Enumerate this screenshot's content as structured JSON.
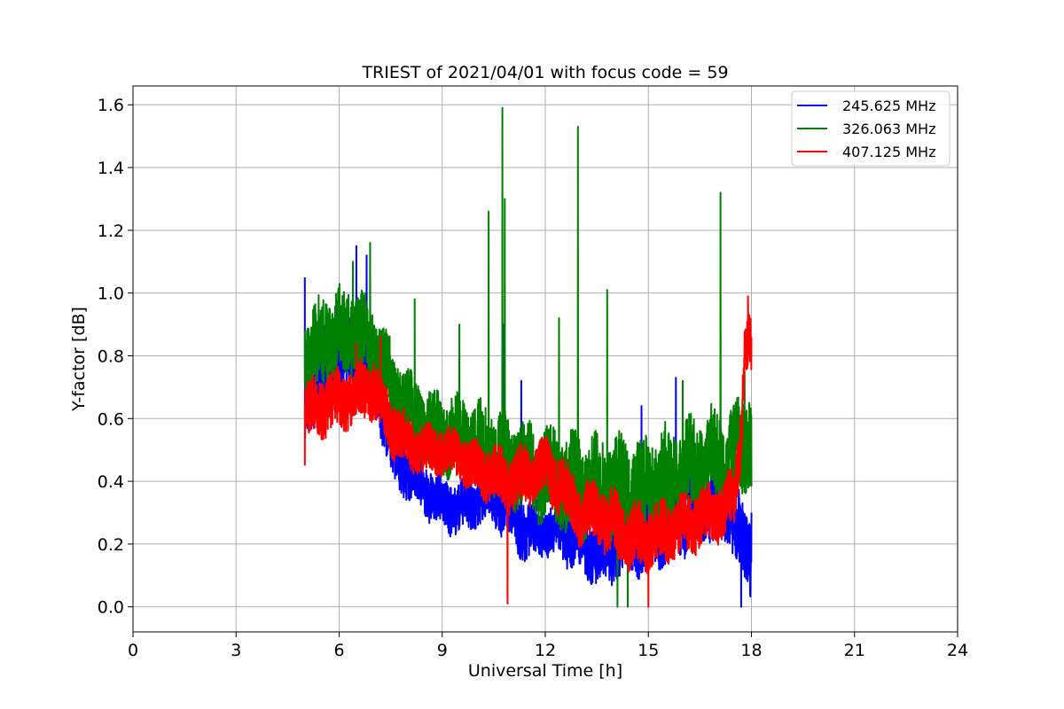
{
  "chart_data": {
    "type": "line",
    "title": "TRIEST of 2021/04/01 with focus code = 59",
    "xlabel": "Universal Time [h]",
    "ylabel": "Y-factor [dB]",
    "xlim": [
      0,
      24
    ],
    "ylim": [
      -0.08,
      1.66
    ],
    "xticks": [
      0,
      3,
      6,
      9,
      12,
      15,
      18,
      21,
      24
    ],
    "yticks": [
      0.0,
      0.2,
      0.4,
      0.6,
      0.8,
      1.0,
      1.2,
      1.4,
      1.6
    ],
    "grid": true,
    "legend_position": "top-right",
    "series": [
      {
        "name": "245.625 MHz",
        "color": "#0000ff",
        "trend": {
          "x": [
            5.0,
            5.5,
            6.0,
            6.5,
            7.0,
            7.3,
            7.6,
            8.0,
            8.5,
            9.0,
            9.5,
            10.0,
            10.5,
            11.0,
            11.5,
            12.0,
            12.5,
            13.0,
            13.5,
            14.0,
            14.5,
            15.0,
            15.5,
            16.0,
            16.5,
            17.0,
            17.5,
            17.8,
            18.0
          ],
          "y": [
            0.68,
            0.74,
            0.78,
            0.8,
            0.74,
            0.62,
            0.48,
            0.44,
            0.38,
            0.33,
            0.31,
            0.34,
            0.36,
            0.3,
            0.24,
            0.25,
            0.23,
            0.19,
            0.17,
            0.18,
            0.22,
            0.24,
            0.27,
            0.29,
            0.31,
            0.33,
            0.3,
            0.18,
            0.16
          ]
        },
        "band": {
          "x": [
            5.0,
            6.0,
            7.0,
            8.0,
            9.0,
            10.0,
            11.0,
            12.0,
            13.0,
            14.0,
            15.0,
            16.0,
            17.0,
            18.0
          ],
          "amplitude": [
            0.12,
            0.12,
            0.1,
            0.09,
            0.08,
            0.08,
            0.1,
            0.08,
            0.08,
            0.1,
            0.12,
            0.12,
            0.12,
            0.12
          ]
        },
        "spikes": [
          [
            5.0,
            1.05
          ],
          [
            6.5,
            1.15
          ],
          [
            6.8,
            1.12
          ],
          [
            10.8,
            0.9
          ],
          [
            11.3,
            0.72
          ],
          [
            14.8,
            0.64
          ],
          [
            15.8,
            0.73
          ],
          [
            17.5,
            0.63
          ],
          [
            17.7,
            0.0
          ],
          [
            18.0,
            0.3
          ]
        ]
      },
      {
        "name": "326.063 MHz",
        "color": "#008000",
        "trend": {
          "x": [
            5.0,
            5.5,
            6.0,
            6.5,
            7.0,
            7.5,
            8.0,
            8.5,
            9.0,
            9.5,
            10.0,
            10.5,
            11.0,
            11.5,
            12.0,
            12.5,
            13.0,
            13.5,
            14.0,
            14.5,
            15.0,
            15.5,
            16.0,
            16.5,
            17.0,
            17.5,
            18.0
          ],
          "y": [
            0.78,
            0.84,
            0.86,
            0.88,
            0.82,
            0.72,
            0.62,
            0.58,
            0.55,
            0.54,
            0.52,
            0.5,
            0.46,
            0.44,
            0.42,
            0.4,
            0.38,
            0.38,
            0.37,
            0.36,
            0.38,
            0.4,
            0.42,
            0.45,
            0.47,
            0.48,
            0.55
          ]
        },
        "band": {
          "x": [
            5.0,
            6.0,
            7.0,
            8.0,
            9.0,
            10.0,
            11.0,
            12.0,
            13.0,
            14.0,
            15.0,
            16.0,
            17.0,
            18.0
          ],
          "amplitude": [
            0.14,
            0.14,
            0.12,
            0.12,
            0.12,
            0.12,
            0.13,
            0.14,
            0.15,
            0.16,
            0.16,
            0.15,
            0.15,
            0.15
          ]
        },
        "spikes": [
          [
            5.0,
            0.88
          ],
          [
            6.4,
            1.1
          ],
          [
            6.9,
            1.16
          ],
          [
            8.2,
            0.98
          ],
          [
            9.5,
            0.9
          ],
          [
            10.35,
            1.26
          ],
          [
            10.75,
            1.59
          ],
          [
            10.82,
            1.3
          ],
          [
            12.4,
            0.92
          ],
          [
            12.95,
            1.53
          ],
          [
            13.8,
            1.01
          ],
          [
            14.1,
            0.0
          ],
          [
            14.4,
            0.0
          ],
          [
            16.0,
            0.72
          ],
          [
            17.1,
            1.32
          ],
          [
            17.8,
            0.75
          ]
        ]
      },
      {
        "name": "407.125 MHz",
        "color": "#ff0000",
        "trend": {
          "x": [
            5.0,
            5.5,
            6.0,
            6.5,
            7.0,
            7.5,
            8.0,
            8.5,
            9.0,
            9.5,
            10.0,
            10.5,
            11.0,
            11.5,
            12.0,
            12.5,
            13.0,
            13.5,
            14.0,
            14.5,
            15.0,
            15.5,
            16.0,
            16.5,
            17.0,
            17.5,
            17.7,
            17.8,
            18.0
          ],
          "y": [
            0.62,
            0.64,
            0.66,
            0.68,
            0.7,
            0.58,
            0.52,
            0.5,
            0.5,
            0.48,
            0.44,
            0.42,
            0.4,
            0.42,
            0.44,
            0.38,
            0.3,
            0.3,
            0.26,
            0.22,
            0.22,
            0.24,
            0.26,
            0.28,
            0.3,
            0.35,
            0.55,
            0.85,
            0.82
          ]
        },
        "band": {
          "x": [
            5.0,
            6.0,
            7.0,
            8.0,
            9.0,
            10.0,
            11.0,
            12.0,
            13.0,
            14.0,
            15.0,
            16.0,
            17.0,
            18.0
          ],
          "amplitude": [
            0.09,
            0.09,
            0.09,
            0.08,
            0.07,
            0.08,
            0.09,
            0.09,
            0.09,
            0.1,
            0.1,
            0.09,
            0.09,
            0.09
          ]
        },
        "spikes": [
          [
            5.0,
            0.45
          ],
          [
            6.5,
            0.84
          ],
          [
            7.2,
            0.86
          ],
          [
            10.9,
            0.01
          ],
          [
            15.0,
            0.0
          ],
          [
            17.9,
            0.99
          ]
        ]
      }
    ]
  }
}
